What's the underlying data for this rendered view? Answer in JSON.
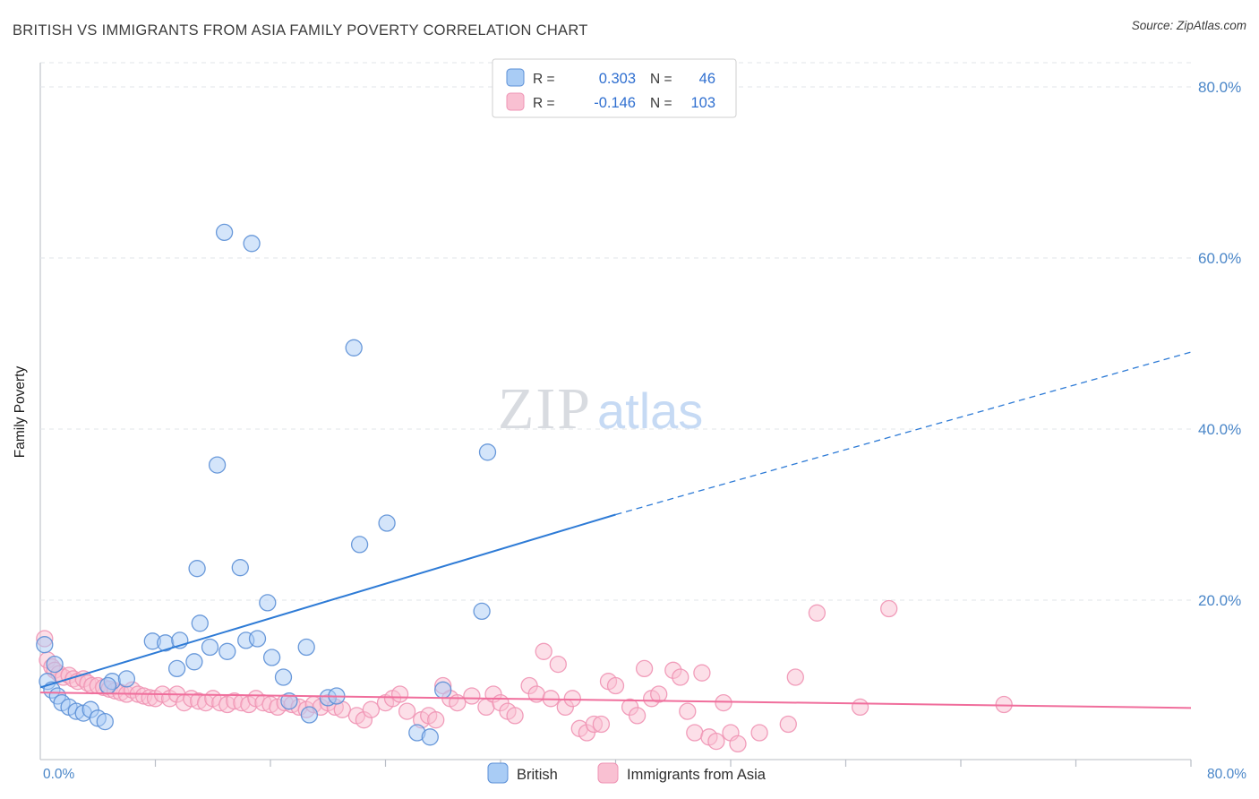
{
  "header": {
    "title": "BRITISH VS IMMIGRANTS FROM ASIA FAMILY POVERTY CORRELATION CHART",
    "source": "Source: ZipAtlas.com"
  },
  "axes": {
    "y_label": "Family Poverty",
    "x_min_label": "0.0%",
    "x_max_label": "80.0%"
  },
  "watermark": {
    "part1": "ZIP",
    "part2": "atlas"
  },
  "stats_box": {
    "rows": [
      {
        "series": "British",
        "r_label": "R =",
        "r_value": "0.303",
        "n_label": "N =",
        "n_value": "46"
      },
      {
        "series": "Immigrants from Asia",
        "r_label": "R =",
        "r_value": "-0.146",
        "n_label": "N =",
        "n_value": "103"
      }
    ]
  },
  "legend": {
    "british": "British",
    "asia": "Immigrants from Asia"
  },
  "colors": {
    "british_stroke": "#5b8fd6",
    "british_fill": "#a9ccf5",
    "british_trend": "#2e7bd6",
    "asia_stroke": "#ef93b4",
    "asia_fill": "#f9c0d2",
    "asia_trend": "#f06e9c",
    "axis_label_blue": "#4a86c8"
  },
  "chart_data": {
    "type": "scatter",
    "title": "BRITISH VS IMMIGRANTS FROM ASIA FAMILY POVERTY CORRELATION CHART",
    "xlabel": "",
    "ylabel": "Family Poverty",
    "x_range_pct": [
      0,
      80
    ],
    "y_range_pct": [
      0,
      82
    ],
    "grid": "horizontal-dashed",
    "legend_position": "bottom-center",
    "y_gridlines_pct": [
      20,
      40,
      60,
      80
    ],
    "y_tick_labels": [
      "20.0%",
      "40.0%",
      "60.0%",
      "80.0%"
    ],
    "x_ticks_pct": [
      8,
      16,
      24,
      32,
      40,
      48,
      56,
      64,
      72,
      80
    ],
    "series": [
      {
        "name": "British",
        "r": 0.303,
        "n": 46,
        "color": "#5b8fd6",
        "fill": "#a9ccf5",
        "points": [
          [
            12.8,
            63.0
          ],
          [
            14.7,
            61.7
          ],
          [
            21.8,
            49.5
          ],
          [
            31.1,
            37.3
          ],
          [
            12.3,
            35.8
          ],
          [
            24.1,
            29.0
          ],
          [
            22.2,
            26.5
          ],
          [
            10.9,
            23.7
          ],
          [
            13.9,
            23.8
          ],
          [
            15.8,
            19.7
          ],
          [
            30.7,
            18.7
          ],
          [
            11.1,
            17.3
          ],
          [
            7.8,
            15.2
          ],
          [
            8.7,
            15.0
          ],
          [
            9.7,
            15.3
          ],
          [
            14.3,
            15.3
          ],
          [
            15.1,
            15.5
          ],
          [
            11.8,
            14.5
          ],
          [
            13.0,
            14.0
          ],
          [
            18.5,
            14.5
          ],
          [
            16.1,
            13.3
          ],
          [
            9.5,
            12.0
          ],
          [
            10.7,
            12.8
          ],
          [
            1.0,
            12.5
          ],
          [
            0.3,
            14.8
          ],
          [
            0.5,
            10.5
          ],
          [
            0.8,
            9.5
          ],
          [
            1.2,
            8.8
          ],
          [
            1.5,
            8.0
          ],
          [
            2.0,
            7.5
          ],
          [
            2.5,
            7.0
          ],
          [
            3.0,
            6.8
          ],
          [
            3.5,
            7.2
          ],
          [
            4.0,
            6.2
          ],
          [
            4.5,
            5.8
          ],
          [
            5.0,
            10.5
          ],
          [
            6.0,
            10.8
          ],
          [
            4.7,
            10.0
          ],
          [
            16.9,
            11.0
          ],
          [
            17.3,
            8.2
          ],
          [
            20.0,
            8.6
          ],
          [
            20.6,
            8.8
          ],
          [
            28.0,
            9.5
          ],
          [
            18.7,
            6.6
          ],
          [
            26.2,
            4.5
          ],
          [
            27.1,
            4.0
          ]
        ]
      },
      {
        "name": "Immigrants from Asia",
        "r": -0.146,
        "n": 103,
        "color": "#ef93b4",
        "fill": "#f9c0d2",
        "points": [
          [
            0.3,
            15.5
          ],
          [
            0.5,
            13.0
          ],
          [
            0.8,
            12.2
          ],
          [
            1.0,
            11.8
          ],
          [
            1.3,
            11.4
          ],
          [
            1.6,
            11.0
          ],
          [
            2.0,
            11.2
          ],
          [
            2.3,
            10.8
          ],
          [
            2.6,
            10.5
          ],
          [
            3.0,
            10.8
          ],
          [
            3.3,
            10.3
          ],
          [
            3.6,
            10.0
          ],
          [
            4.0,
            10.0
          ],
          [
            4.4,
            9.8
          ],
          [
            4.8,
            9.6
          ],
          [
            5.2,
            9.4
          ],
          [
            5.6,
            9.2
          ],
          [
            6.0,
            9.0
          ],
          [
            6.4,
            9.5
          ],
          [
            6.8,
            9.0
          ],
          [
            7.2,
            8.8
          ],
          [
            7.6,
            8.6
          ],
          [
            8.0,
            8.5
          ],
          [
            8.5,
            9.0
          ],
          [
            9.0,
            8.5
          ],
          [
            9.5,
            9.0
          ],
          [
            10.0,
            8.0
          ],
          [
            10.5,
            8.5
          ],
          [
            11.0,
            8.2
          ],
          [
            11.5,
            8.0
          ],
          [
            12.0,
            8.5
          ],
          [
            12.5,
            8.0
          ],
          [
            13.0,
            7.8
          ],
          [
            13.5,
            8.2
          ],
          [
            14.0,
            8.0
          ],
          [
            14.5,
            7.8
          ],
          [
            15.0,
            8.5
          ],
          [
            15.5,
            8.0
          ],
          [
            16.0,
            7.8
          ],
          [
            16.5,
            7.5
          ],
          [
            17.0,
            8.0
          ],
          [
            17.5,
            7.8
          ],
          [
            18.0,
            7.5
          ],
          [
            18.5,
            7.2
          ],
          [
            19.0,
            7.8
          ],
          [
            19.5,
            7.5
          ],
          [
            20.0,
            8.0
          ],
          [
            20.5,
            7.5
          ],
          [
            21.0,
            7.2
          ],
          [
            22.0,
            6.5
          ],
          [
            22.5,
            6.0
          ],
          [
            23.0,
            7.2
          ],
          [
            24.0,
            8.0
          ],
          [
            24.5,
            8.5
          ],
          [
            25.0,
            9.0
          ],
          [
            25.5,
            7.0
          ],
          [
            26.5,
            6.0
          ],
          [
            27.0,
            6.5
          ],
          [
            27.5,
            6.0
          ],
          [
            28.0,
            10.0
          ],
          [
            28.5,
            8.5
          ],
          [
            29.0,
            8.0
          ],
          [
            30.0,
            8.8
          ],
          [
            31.0,
            7.5
          ],
          [
            31.5,
            9.0
          ],
          [
            32.0,
            8.0
          ],
          [
            32.5,
            7.0
          ],
          [
            33.0,
            6.5
          ],
          [
            34.0,
            10.0
          ],
          [
            34.5,
            9.0
          ],
          [
            35.0,
            14.0
          ],
          [
            35.5,
            8.5
          ],
          [
            36.0,
            12.5
          ],
          [
            36.5,
            7.5
          ],
          [
            37.0,
            8.5
          ],
          [
            37.5,
            5.0
          ],
          [
            38.0,
            4.5
          ],
          [
            38.5,
            5.5
          ],
          [
            39.0,
            5.5
          ],
          [
            39.5,
            10.5
          ],
          [
            40.0,
            10.0
          ],
          [
            41.0,
            7.5
          ],
          [
            41.5,
            6.5
          ],
          [
            42.0,
            12.0
          ],
          [
            42.5,
            8.5
          ],
          [
            43.0,
            9.0
          ],
          [
            44.0,
            11.8
          ],
          [
            44.5,
            11.0
          ],
          [
            45.0,
            7.0
          ],
          [
            45.5,
            4.5
          ],
          [
            46.0,
            11.5
          ],
          [
            46.5,
            4.0
          ],
          [
            47.0,
            3.5
          ],
          [
            47.5,
            8.0
          ],
          [
            48.0,
            4.5
          ],
          [
            48.5,
            3.2
          ],
          [
            50.0,
            4.5
          ],
          [
            52.0,
            5.5
          ],
          [
            52.5,
            11.0
          ],
          [
            54.0,
            18.5
          ],
          [
            57.0,
            7.5
          ],
          [
            59.0,
            19.0
          ],
          [
            67.0,
            7.8
          ]
        ]
      }
    ],
    "trend_lines": [
      {
        "series": "British",
        "solid": [
          [
            0,
            9.8
          ],
          [
            40,
            30.0
          ]
        ],
        "dashed": [
          [
            40,
            30.0
          ],
          [
            80,
            49.0
          ]
        ],
        "color": "#2e7bd6"
      },
      {
        "series": "Immigrants from Asia",
        "solid": [
          [
            0,
            9.2
          ],
          [
            80,
            7.4
          ]
        ],
        "color": "#f06e9c"
      }
    ]
  }
}
